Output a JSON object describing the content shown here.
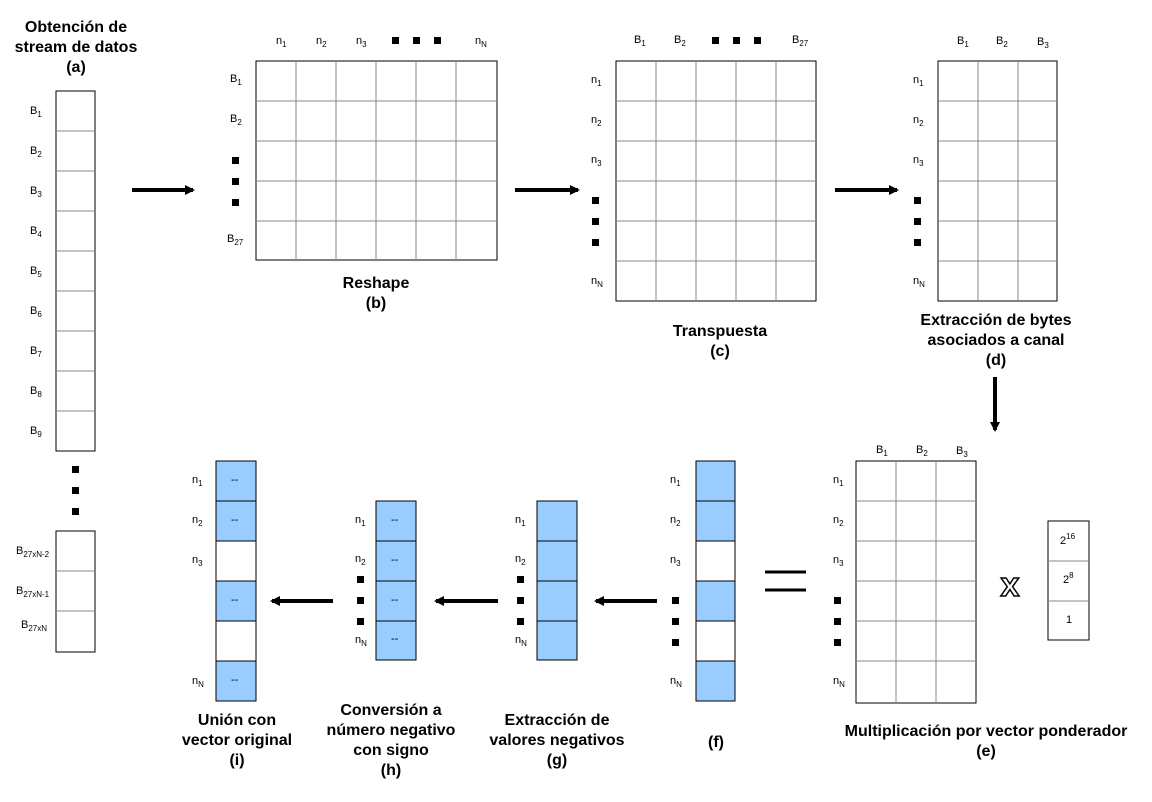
{
  "captions": {
    "a": [
      "Obtención de",
      "stream de datos",
      "(a)"
    ],
    "b": [
      "Reshape",
      "(b)"
    ],
    "c": [
      "Transpuesta",
      "(c)"
    ],
    "d": [
      "Extracción de bytes",
      "asociados a canal",
      "(d)"
    ],
    "e": [
      "Multiplicación por vector ponderador",
      "(e)"
    ],
    "f": [
      "(f)"
    ],
    "g": [
      "Extracción de",
      "valores negativos",
      "(g)"
    ],
    "h": [
      "Conversión a",
      "número negativo",
      "con signo",
      "(h)"
    ],
    "i": [
      "Unión con",
      "vector original",
      "(i)"
    ]
  },
  "labels": {
    "B": "B",
    "n": "n",
    "b_subs_a": [
      "1",
      "2",
      "3",
      "4",
      "5",
      "6",
      "7",
      "8",
      "9"
    ],
    "b_tail_subs": [
      "27xN-2",
      "27xN-1",
      "27xN"
    ],
    "n_subs_top_b": [
      "1",
      "2",
      "3",
      "N"
    ],
    "b_subs_rows_b": [
      "1",
      "2",
      "27"
    ],
    "b_subs_cols_c": [
      "1",
      "2",
      "27"
    ],
    "n_subs_rows": [
      "1",
      "2",
      "3",
      "N"
    ],
    "b_subs_3": [
      "1",
      "2",
      "3"
    ],
    "weights_base": "2",
    "weights_exp": [
      "16",
      "8"
    ],
    "weights_last": "1",
    "dash": "--",
    "multiply": "x"
  },
  "colors": {
    "highlight": "#99ccff",
    "grid": "#888888"
  }
}
